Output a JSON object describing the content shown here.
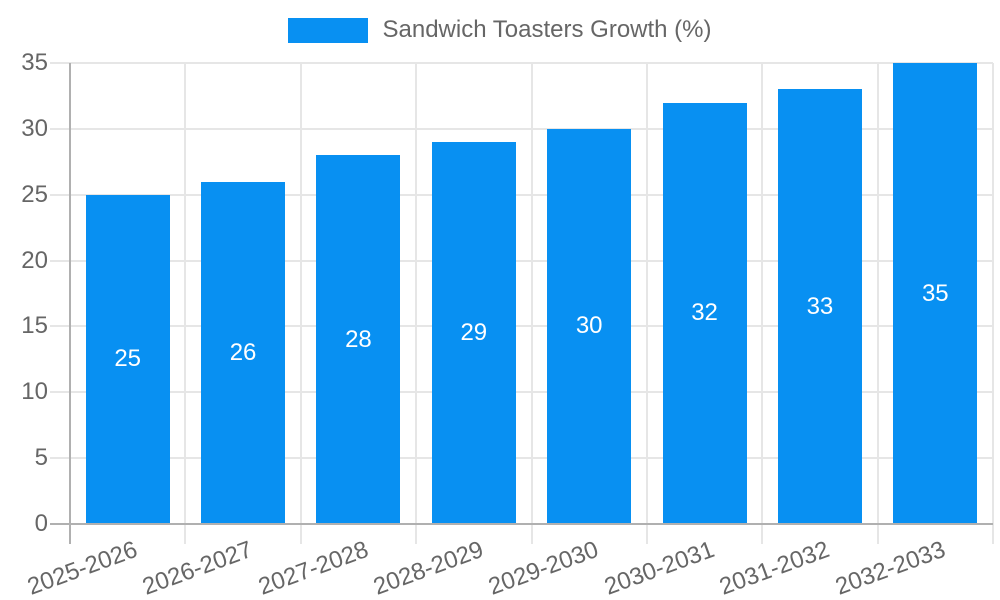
{
  "chart_data": {
    "type": "bar",
    "title": "",
    "legend": {
      "label": "Sandwich Toasters Growth (%)",
      "position": "top"
    },
    "categories": [
      "2025-2026",
      "2026-2027",
      "2027-2028",
      "2028-2029",
      "2029-2030",
      "2030-2031",
      "2031-2032",
      "2032-2033"
    ],
    "values": [
      25,
      26,
      28,
      29,
      30,
      32,
      33,
      35
    ],
    "value_labels": [
      "25",
      "26",
      "28",
      "29",
      "30",
      "32",
      "33",
      "35"
    ],
    "xlabel": "",
    "ylabel": "",
    "ylim": [
      0,
      35
    ],
    "ytick_step": 5,
    "yticks": [
      "0",
      "5",
      "10",
      "15",
      "20",
      "25",
      "30",
      "35"
    ],
    "grid": true,
    "x_label_rotation_deg": -20,
    "colors": {
      "bar": "#0890f2",
      "grid": "#e6e6e6",
      "axis": "#b0b0b0",
      "tick_label": "#666666",
      "legend_text": "#666666",
      "value_label": "#ffffff",
      "background": "#ffffff"
    }
  }
}
